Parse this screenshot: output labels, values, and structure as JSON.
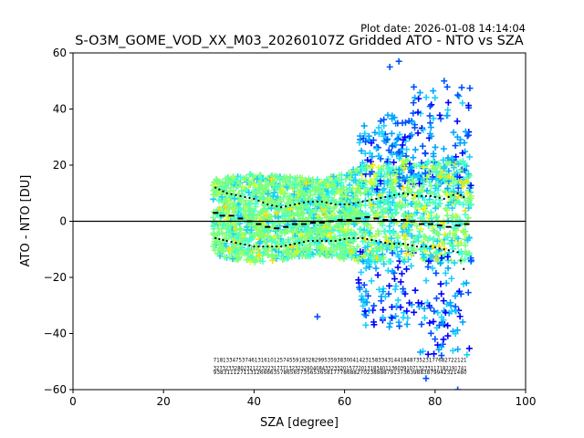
{
  "plot_date": "Plot date: 2026-01-08 14:14:04",
  "chart_data": {
    "type": "scatter",
    "title": "S-O3M_GOME_VOD_XX_M03_20260107Z Gridded ATO - NTO vs SZA",
    "xlabel": "SZA [degree]",
    "ylabel": "ATO - NTO [DU]",
    "xlim": [
      0,
      100
    ],
    "ylim": [
      -60,
      60
    ],
    "xticks": [
      0,
      20,
      40,
      60,
      80,
      100
    ],
    "yticks": [
      -60,
      -40,
      -20,
      0,
      20,
      40,
      60
    ],
    "zero_line": 0,
    "marker": "+",
    "colormap": [
      "#0000ff",
      "#0050ff",
      "#00a4ff",
      "#19d0ff",
      "#40ffd0",
      "#7dff7d",
      "#b0ff4a",
      "#e4ff1e",
      "#ffe000"
    ],
    "scatter_envelope": {
      "sza_range": [
        31,
        88
      ],
      "core_band_low_by_sza": [
        [
          31,
          -12
        ],
        [
          40,
          -15
        ],
        [
          55,
          -12
        ],
        [
          65,
          -15
        ],
        [
          75,
          -14
        ],
        [
          85,
          -15
        ],
        [
          88,
          -15
        ]
      ],
      "core_band_high_by_sza": [
        [
          31,
          15
        ],
        [
          40,
          17
        ],
        [
          55,
          15
        ],
        [
          65,
          20
        ],
        [
          75,
          22
        ],
        [
          85,
          22
        ],
        [
          88,
          22
        ]
      ],
      "extremes": [
        [
          70,
          55
        ],
        [
          72,
          57
        ],
        [
          82,
          50
        ],
        [
          85,
          45
        ],
        [
          54,
          -34
        ],
        [
          78,
          -56
        ],
        [
          85,
          -60
        ]
      ]
    },
    "mean_binned": {
      "sza": [
        31.5,
        33,
        35,
        37,
        39,
        41,
        43,
        45,
        47,
        49,
        51,
        53,
        55,
        57,
        59,
        61,
        63,
        65,
        67,
        69,
        71,
        73,
        75,
        77,
        79,
        81,
        83,
        85,
        87
      ],
      "values": [
        3,
        2,
        2,
        1,
        0,
        -1,
        -2,
        -2.5,
        -2,
        -1,
        -1,
        -0.5,
        -0.5,
        0,
        0.5,
        0.5,
        1,
        1.5,
        1,
        0.5,
        0.5,
        0.5,
        0,
        -1,
        -1,
        -1.5,
        -2,
        -1.5,
        -1
      ]
    },
    "upper_std": {
      "sza": [
        31.5,
        34,
        37,
        40,
        43,
        46,
        49,
        52,
        55,
        58,
        61,
        64,
        67,
        70,
        73,
        76,
        79,
        82,
        85,
        87
      ],
      "values": [
        12,
        10,
        9,
        8,
        6,
        5,
        6,
        7,
        7,
        6,
        6,
        7,
        8,
        9,
        10,
        9,
        9,
        8,
        10,
        8
      ]
    },
    "lower_std": {
      "sza": [
        31.5,
        34,
        37,
        40,
        43,
        46,
        49,
        52,
        55,
        58,
        61,
        64,
        67,
        70,
        73,
        76,
        79,
        82,
        85,
        87
      ],
      "values": [
        -6,
        -7,
        -8,
        -9,
        -9,
        -9,
        -8,
        -7,
        -7,
        -7,
        -6,
        -6,
        -7,
        -8,
        -8,
        -9,
        -9,
        -10,
        -11,
        -20
      ]
    },
    "count_labels": {
      "rows": [
        "71813347537461316101257455918328299535938300414231583343144184873523177682722121",
        "327323328023212232231777132323260408433233201577201318340113603910713233117182191741",
        "9383111271131266663578656573565365817778688270238888791373639883879942321480"
      ],
      "y_values": [
        -50,
        -53,
        -54.5
      ],
      "sza_span": [
        31,
        87
      ]
    }
  }
}
